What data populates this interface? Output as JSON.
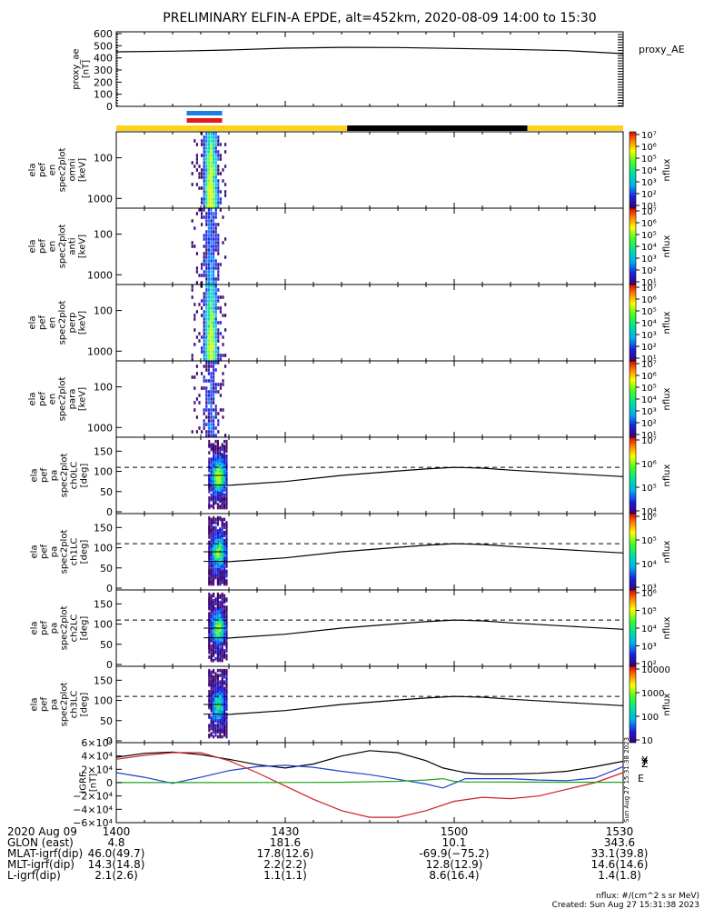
{
  "title": "PRELIMINARY ELFIN-A EPDE, alt=452km, 2020-08-09 14:00 to 15:30",
  "legend": {
    "proxy_ae": "proxy_AE",
    "grf_labels": [
      "X",
      "Y",
      "Z",
      "E"
    ]
  },
  "colors": {
    "x": "#000000",
    "y": "#1f3fd1",
    "z": "#d11f1f",
    "e": "#1fa31f",
    "bar_sun": "#ffd21a",
    "bar_shadow": "#000000",
    "bar_blue": "#1a7fe0",
    "bar_red": "#e01a1a"
  },
  "panels": [
    {
      "ylabel": [
        "proxy_ae",
        "[nT]"
      ],
      "ticks": [
        "600",
        "500",
        "400",
        "300",
        "200",
        "100",
        "0"
      ],
      "right": "proxy_AE"
    },
    {
      "ylabel": [
        "ela",
        "pef",
        "en",
        "spec2plot",
        "omni",
        "[keV]"
      ],
      "ticks": [
        "1000",
        "100"
      ],
      "cbar": [
        "10⁷",
        "10⁶",
        "10⁵",
        "10⁴",
        "10³",
        "10²",
        "10¹"
      ],
      "cbar_label": "nflux"
    },
    {
      "ylabel": [
        "ela",
        "pef",
        "en",
        "spec2plot",
        "anti",
        "[keV]"
      ],
      "ticks": [
        "1000",
        "100"
      ],
      "cbar": [
        "10⁷",
        "10⁶",
        "10⁵",
        "10⁴",
        "10³",
        "10²",
        "10¹"
      ],
      "cbar_label": "nflux"
    },
    {
      "ylabel": [
        "ela",
        "pef",
        "en",
        "spec2plot",
        "perp",
        "[keV]"
      ],
      "ticks": [
        "1000",
        "100"
      ],
      "cbar": [
        "10⁷",
        "10⁶",
        "10⁵",
        "10⁴",
        "10³",
        "10²",
        "10¹"
      ],
      "cbar_label": "nflux"
    },
    {
      "ylabel": [
        "ela",
        "pef",
        "en",
        "spec2plot",
        "para",
        "[keV]"
      ],
      "ticks": [
        "1000",
        "100"
      ],
      "cbar": [
        "10⁷",
        "10⁶",
        "10⁵",
        "10⁴",
        "10³",
        "10²",
        "10¹"
      ],
      "cbar_label": "nflux"
    },
    {
      "ylabel": [
        "ela",
        "pef",
        "pa",
        "spec2plot",
        "ch0LC",
        "[deg]"
      ],
      "ticks": [
        "150",
        "100",
        "50",
        "0"
      ],
      "cbar": [
        "10⁷",
        "10⁶",
        "10⁵",
        "10⁴"
      ],
      "cbar_label": "nflux"
    },
    {
      "ylabel": [
        "ela",
        "pef",
        "pa",
        "spec2plot",
        "ch1LC",
        "[deg]"
      ],
      "ticks": [
        "150",
        "100",
        "50",
        "0"
      ],
      "cbar": [
        "10⁶",
        "10⁵",
        "10⁴",
        "10³"
      ],
      "cbar_label": "nflux"
    },
    {
      "ylabel": [
        "ela",
        "pef",
        "pa",
        "spec2plot",
        "ch2LC",
        "[deg]"
      ],
      "ticks": [
        "150",
        "100",
        "50",
        "0"
      ],
      "cbar": [
        "10⁶",
        "10⁵",
        "10⁴",
        "10³",
        "10²"
      ],
      "cbar_label": "nflux"
    },
    {
      "ylabel": [
        "ela",
        "pef",
        "pa",
        "spec2plot",
        "ch3LC",
        "[deg]"
      ],
      "ticks": [
        "150",
        "100",
        "50",
        "0"
      ],
      "cbar": [
        "10000",
        "1000",
        "100",
        "10"
      ],
      "cbar_label": "nflux"
    },
    {
      "ylabel": [
        "IGRF",
        "[nT]"
      ],
      "ticks": [
        "6×10⁴",
        "4×10⁴",
        "2×10⁴",
        "0",
        "−2×10⁴",
        "−4×10⁴",
        "−6×10⁴"
      ]
    }
  ],
  "bottom": {
    "rows": [
      {
        "label": "2020 Aug 09",
        "values": [
          "1400",
          "1430",
          "1500",
          "1530"
        ]
      },
      {
        "label": "GLON (east)",
        "values": [
          "4.8",
          "181.6",
          "10.1",
          "343.6"
        ]
      },
      {
        "label": "MLAT-igrf(dip)",
        "values": [
          "46.0(49.7)",
          "17.8(12.6)",
          "-69.9(−75.2)",
          "33.1(39.8)"
        ]
      },
      {
        "label": "MLT-igrf(dip)",
        "values": [
          "14.3(14.8)",
          "2.2(2.2)",
          "12.8(12.9)",
          "14.6(14.6)"
        ]
      },
      {
        "label": "L-igrf(dip)",
        "values": [
          "2.1(2.6)",
          "1.1(1.1)",
          "8.6(16.4)",
          "1.4(1.8)"
        ]
      }
    ],
    "units_note": "nflux: #/(cm^2 s sr MeV)",
    "created": "Created: Sun Aug 27 15:31:38 2023",
    "vertical_stamp": "Sun Aug 27 15:31:38 2023"
  },
  "chart_data": {
    "type": "line",
    "title": "PRELIMINARY ELFIN-A EPDE, alt=452km, 2020-08-09 14:00 to 15:30",
    "x_ticks": [
      "1400",
      "1430",
      "1500",
      "1530"
    ],
    "x_minutes": [
      0,
      30,
      60,
      90
    ],
    "proxy_ae": {
      "name": "proxy_AE",
      "ylim": [
        0,
        600
      ],
      "x": [
        0,
        10,
        20,
        30,
        40,
        50,
        60,
        70,
        80,
        90
      ],
      "y": [
        450,
        455,
        465,
        480,
        487,
        485,
        478,
        470,
        460,
        435
      ]
    },
    "spectrograms": {
      "energy_panels": [
        "omni",
        "anti",
        "perp",
        "para"
      ],
      "energy_ticks_keV": [
        100,
        1000
      ],
      "pa_panels": [
        "ch0LC",
        "ch1LC",
        "ch2LC",
        "ch3LC"
      ],
      "pa_ticks_deg": [
        0,
        50,
        100,
        150
      ],
      "data_interval_minutes": [
        13.5,
        19.5
      ],
      "pa_line": {
        "x": [
          19.5,
          30,
          40,
          50,
          55,
          60,
          65,
          70,
          80,
          90
        ],
        "y": [
          65,
          75,
          90,
          101,
          106,
          110,
          108,
          103,
          95,
          87
        ]
      },
      "pa_dashed_deg": 110,
      "pa_solid_deg": [
        90,
        66
      ]
    },
    "igrf": {
      "ylim": [
        -60000,
        60000
      ],
      "series": [
        {
          "name": "X",
          "x": [
            0,
            5,
            10,
            15,
            20,
            25,
            30,
            35,
            40,
            45,
            50,
            55,
            58,
            62,
            65,
            70,
            75,
            80,
            85,
            90
          ],
          "y": [
            38000,
            44000,
            46000,
            42000,
            35000,
            27000,
            22000,
            28000,
            40000,
            48000,
            45000,
            33000,
            22000,
            15000,
            13000,
            13000,
            14000,
            17000,
            24000,
            32000
          ]
        },
        {
          "name": "Y",
          "x": [
            0,
            5,
            10,
            15,
            20,
            25,
            30,
            35,
            40,
            45,
            50,
            55,
            58,
            60,
            62,
            65,
            70,
            75,
            80,
            85,
            90
          ],
          "y": [
            15000,
            8000,
            -1000,
            8000,
            18000,
            24000,
            26000,
            23000,
            17000,
            12000,
            5000,
            -2000,
            -8000,
            -1000,
            6000,
            6000,
            6000,
            4000,
            3000,
            7000,
            24000
          ]
        },
        {
          "name": "Z",
          "x": [
            0,
            5,
            10,
            15,
            20,
            25,
            30,
            35,
            40,
            45,
            50,
            55,
            60,
            65,
            70,
            75,
            80,
            85,
            90
          ],
          "y": [
            35000,
            41000,
            45000,
            45000,
            33000,
            15000,
            -5000,
            -25000,
            -42000,
            -52000,
            -52000,
            -42000,
            -28000,
            -22000,
            -24000,
            -20000,
            -10000,
            0,
            15000
          ]
        },
        {
          "name": "E",
          "x": [
            0,
            10,
            20,
            30,
            40,
            50,
            55,
            58,
            60,
            62,
            65,
            70,
            80,
            90
          ],
          "y": [
            200,
            200,
            200,
            300,
            600,
            2000,
            4000,
            6000,
            2000,
            1000,
            900,
            800,
            700,
            600
          ]
        }
      ]
    }
  }
}
